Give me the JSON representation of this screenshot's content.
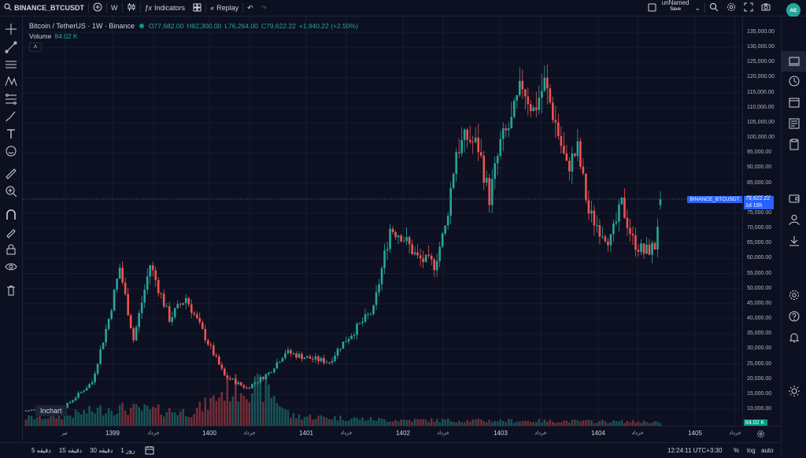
{
  "topbar": {
    "symbol": "BINANCE_BTCUSDT",
    "interval": "W",
    "indicators_label": "Indicators",
    "replay_label": "Replay",
    "layout_name": "unNamed",
    "save_label": "Save"
  },
  "user": {
    "initials": "AE"
  },
  "legend": {
    "title": "Bitcoin / TetherUS · 1W · Binance",
    "open": "O77,682.00",
    "high": "H82,300.00",
    "low": "L76,264.00",
    "close": "C79,622.22",
    "change": "+1,940.22 (+2.50%)",
    "volume_label": "Volume",
    "volume_value": "84.02 K"
  },
  "price_axis": {
    "ticks": [
      "135,000.00",
      "130,000.00",
      "125,000.00",
      "120,000.00",
      "115,000.00",
      "110,000.00",
      "105,000.00",
      "100,000.00",
      "95,000.00",
      "90,000.00",
      "85,000.00",
      "80,000.00",
      "75,000.00",
      "70,000.00",
      "65,000.00",
      "60,000.00",
      "55,000.00",
      "50,000.00",
      "45,000.00",
      "40,000.00",
      "35,000.00",
      "30,000.00",
      "25,000.00",
      "20,000.00",
      "15,000.00",
      "10,000.00"
    ],
    "current_price": "79,622.22",
    "countdown": "1d 15h",
    "symbol_tag": "BINANCE_BTCUSDT",
    "volume_tag": "84.02 K"
  },
  "time_axis": {
    "labels": [
      {
        "text": "تیر",
        "x": 82
      },
      {
        "text": "1399",
        "x": 143
      },
      {
        "text": "خرداد",
        "x": 195
      },
      {
        "text": "1400",
        "x": 266
      },
      {
        "text": "خرداد",
        "x": 317
      },
      {
        "text": "1401",
        "x": 389
      },
      {
        "text": "خرداد",
        "x": 440
      },
      {
        "text": "1402",
        "x": 512
      },
      {
        "text": "خرداد",
        "x": 563
      },
      {
        "text": "1403",
        "x": 636
      },
      {
        "text": "خرداد",
        "x": 687
      },
      {
        "text": "1404",
        "x": 760
      },
      {
        "text": "خرداد",
        "x": 810
      },
      {
        "text": "1405",
        "x": 883
      },
      {
        "text": "خرداد",
        "x": 934
      }
    ]
  },
  "bottombar": {
    "ranges": [
      "5 دقیقه",
      "15 دقیقه",
      "30 دقیقه",
      "1 روز"
    ],
    "time": "12:24:11 UTC+3:30",
    "percent_label": "%",
    "log_label": "log",
    "auto_label": "auto"
  },
  "inchart_label": "Inchart",
  "colors": {
    "up": "#26a69a",
    "down": "#ef5350",
    "accent": "#2962ff",
    "bg": "#0c1021"
  },
  "chart_data": {
    "type": "candlestick",
    "timeframe": "weekly",
    "anchors_price": [
      [
        0,
        9500
      ],
      [
        14,
        10800
      ],
      [
        24,
        19000
      ],
      [
        30,
        40000
      ],
      [
        34,
        57000
      ],
      [
        39,
        33000
      ],
      [
        45,
        58000
      ],
      [
        52,
        40000
      ],
      [
        58,
        47000
      ],
      [
        66,
        32000
      ],
      [
        72,
        21000
      ],
      [
        80,
        17000
      ],
      [
        88,
        22000
      ],
      [
        94,
        29000
      ],
      [
        102,
        27000
      ],
      [
        110,
        25700
      ],
      [
        114,
        31000
      ],
      [
        118,
        35000
      ],
      [
        126,
        43000
      ],
      [
        132,
        70000
      ],
      [
        136,
        68000
      ],
      [
        142,
        60000
      ],
      [
        148,
        58000
      ],
      [
        152,
        70000
      ],
      [
        156,
        96000
      ],
      [
        160,
        100000
      ],
      [
        164,
        97000
      ],
      [
        168,
        80000
      ],
      [
        172,
        98000
      ],
      [
        176,
        105000
      ],
      [
        180,
        118000
      ],
      [
        184,
        109000
      ],
      [
        188,
        118000
      ],
      [
        192,
        105000
      ],
      [
        196,
        90000
      ],
      [
        200,
        96000
      ],
      [
        204,
        75000
      ],
      [
        208,
        70000
      ],
      [
        212,
        66000
      ],
      [
        216,
        78000
      ],
      [
        220,
        66000
      ],
      [
        224,
        62000
      ],
      [
        228,
        64000
      ],
      [
        230,
        79600
      ]
    ],
    "anchors_volume": [
      [
        0,
        2.0
      ],
      [
        14,
        2.5
      ],
      [
        30,
        4.5
      ],
      [
        45,
        4.0
      ],
      [
        60,
        3.5
      ],
      [
        66,
        5.5
      ],
      [
        72,
        9.0
      ],
      [
        80,
        10.0
      ],
      [
        88,
        9.0
      ],
      [
        96,
        2.5
      ],
      [
        130,
        1.5
      ],
      [
        230,
        1.0
      ]
    ],
    "last_candle": {
      "open": 77682.0,
      "high": 82300.0,
      "low": 76264.0,
      "close": 79622.22,
      "volume": "84.02 K"
    },
    "price_range": [
      10000,
      135000
    ]
  }
}
